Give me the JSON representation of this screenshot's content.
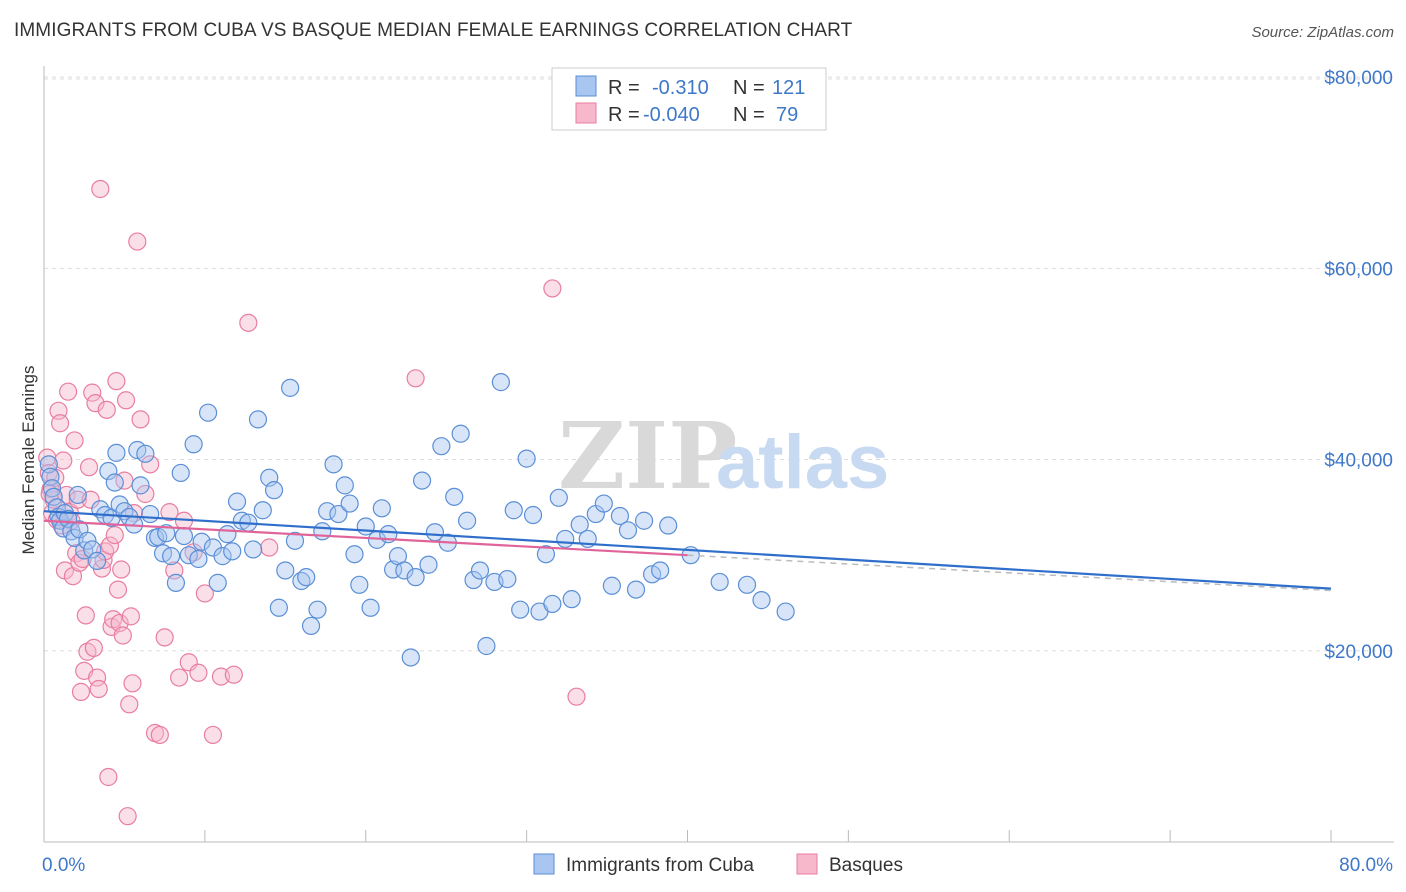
{
  "title": "IMMIGRANTS FROM CUBA VS BASQUE MEDIAN FEMALE EARNINGS CORRELATION CHART",
  "source": "Source: ZipAtlas.com",
  "watermark": {
    "zip": "ZIP",
    "atlas": "atlas"
  },
  "colors": {
    "cuba_fill": "#a8c6ef",
    "cuba_stroke": "#5b8fd6",
    "cuba_line": "#2f6fcb",
    "basque_fill": "#f7b8cb",
    "basque_stroke": "#e87ea1",
    "basque_line": "#e0649a",
    "axis_text": "#3f78c8",
    "grid": "#dddddd"
  },
  "legend": {
    "rows": [
      {
        "r_label": "R =",
        "r_value": "-0.310",
        "n_label": "N =",
        "n_value": "121"
      },
      {
        "r_label": "R =",
        "r_value": "-0.040",
        "n_label": "N =",
        "n_value": "79"
      }
    ]
  },
  "chart_data": {
    "type": "scatter",
    "title": "IMMIGRANTS FROM CUBA VS BASQUE MEDIAN FEMALE EARNINGS CORRELATION CHART",
    "xlabel": "",
    "ylabel": "Median Female Earnings",
    "xlim": [
      0,
      80
    ],
    "ylim": [
      0,
      82000
    ],
    "x_tick_labels": [
      "0.0%",
      "80.0%"
    ],
    "y_ticks": [
      20000,
      40000,
      60000,
      80000
    ],
    "y_tick_labels": [
      "$20,000",
      "$40,000",
      "$60,000",
      "$80,000"
    ],
    "grid": true,
    "series": [
      {
        "name": "Immigrants from Cuba",
        "r": -0.31,
        "n": 121,
        "trend": {
          "x": [
            0,
            80
          ],
          "y": [
            34600,
            26500
          ]
        },
        "trend_dashed": {
          "x": [
            80,
            80.3
          ],
          "y": [
            26500,
            26500
          ]
        },
        "points": [
          [
            0.3,
            39500
          ],
          [
            0.4,
            38200
          ],
          [
            0.5,
            37000
          ],
          [
            0.6,
            36100
          ],
          [
            0.8,
            35000
          ],
          [
            0.9,
            34000
          ],
          [
            1.0,
            33600
          ],
          [
            1.2,
            32800
          ],
          [
            1.3,
            34400
          ],
          [
            1.5,
            33800
          ],
          [
            1.7,
            32500
          ],
          [
            1.9,
            31800
          ],
          [
            2.2,
            32700
          ],
          [
            2.5,
            30500
          ],
          [
            2.7,
            31500
          ],
          [
            3.0,
            30600
          ],
          [
            3.3,
            29400
          ],
          [
            3.5,
            34800
          ],
          [
            3.8,
            34200
          ],
          [
            4.0,
            38800
          ],
          [
            4.2,
            33900
          ],
          [
            4.4,
            37600
          ],
          [
            4.5,
            40700
          ],
          [
            4.7,
            35300
          ],
          [
            5.0,
            34600
          ],
          [
            5.3,
            34000
          ],
          [
            5.6,
            33200
          ],
          [
            5.8,
            41000
          ],
          [
            6.0,
            37300
          ],
          [
            6.3,
            40600
          ],
          [
            6.6,
            34300
          ],
          [
            6.9,
            31800
          ],
          [
            7.1,
            31900
          ],
          [
            7.4,
            30200
          ],
          [
            7.6,
            32300
          ],
          [
            7.9,
            29900
          ],
          [
            8.2,
            27100
          ],
          [
            8.5,
            38600
          ],
          [
            8.7,
            32000
          ],
          [
            9.0,
            30000
          ],
          [
            9.3,
            41600
          ],
          [
            9.6,
            29600
          ],
          [
            9.8,
            31400
          ],
          [
            10.2,
            44900
          ],
          [
            10.5,
            30800
          ],
          [
            10.8,
            27100
          ],
          [
            11.1,
            29900
          ],
          [
            11.4,
            32200
          ],
          [
            11.7,
            30400
          ],
          [
            12.0,
            35600
          ],
          [
            12.3,
            33600
          ],
          [
            12.7,
            33400
          ],
          [
            13.0,
            30600
          ],
          [
            13.3,
            44200
          ],
          [
            13.6,
            34700
          ],
          [
            14.0,
            38100
          ],
          [
            14.3,
            36800
          ],
          [
            14.6,
            24500
          ],
          [
            15.0,
            28400
          ],
          [
            15.3,
            47500
          ],
          [
            15.6,
            31500
          ],
          [
            16.0,
            27300
          ],
          [
            16.3,
            27700
          ],
          [
            16.6,
            22600
          ],
          [
            17.0,
            24300
          ],
          [
            17.3,
            32500
          ],
          [
            17.6,
            34600
          ],
          [
            18.0,
            39500
          ],
          [
            18.3,
            34300
          ],
          [
            18.7,
            37300
          ],
          [
            19.0,
            35400
          ],
          [
            19.3,
            30100
          ],
          [
            19.6,
            26900
          ],
          [
            20.0,
            33000
          ],
          [
            20.3,
            24500
          ],
          [
            20.7,
            31600
          ],
          [
            21.0,
            34900
          ],
          [
            21.4,
            32200
          ],
          [
            21.7,
            28500
          ],
          [
            22.0,
            29900
          ],
          [
            22.4,
            28400
          ],
          [
            22.8,
            19300
          ],
          [
            23.1,
            27700
          ],
          [
            23.5,
            37800
          ],
          [
            23.9,
            29000
          ],
          [
            24.3,
            32400
          ],
          [
            24.7,
            41400
          ],
          [
            25.1,
            31300
          ],
          [
            25.5,
            36100
          ],
          [
            25.9,
            42700
          ],
          [
            26.3,
            33600
          ],
          [
            26.7,
            27400
          ],
          [
            27.1,
            28400
          ],
          [
            27.5,
            20500
          ],
          [
            28.0,
            27200
          ],
          [
            28.4,
            48100
          ],
          [
            28.8,
            27500
          ],
          [
            29.2,
            34700
          ],
          [
            29.6,
            24300
          ],
          [
            30.0,
            40100
          ],
          [
            30.4,
            34200
          ],
          [
            30.8,
            24100
          ],
          [
            31.2,
            30100
          ],
          [
            31.6,
            24900
          ],
          [
            32.0,
            36000
          ],
          [
            32.4,
            31700
          ],
          [
            32.8,
            25400
          ],
          [
            33.3,
            33200
          ],
          [
            33.8,
            31700
          ],
          [
            34.3,
            34300
          ],
          [
            34.8,
            35400
          ],
          [
            35.3,
            26800
          ],
          [
            35.8,
            34100
          ],
          [
            36.3,
            32600
          ],
          [
            36.8,
            26400
          ],
          [
            37.3,
            33600
          ],
          [
            37.8,
            28000
          ],
          [
            38.3,
            28400
          ],
          [
            38.8,
            33100
          ],
          [
            40.2,
            30000
          ],
          [
            42.0,
            27200
          ],
          [
            43.7,
            26900
          ],
          [
            44.6,
            25300
          ],
          [
            46.1,
            24100
          ],
          [
            2.1,
            36300
          ]
        ]
      },
      {
        "name": "Basques",
        "r": -0.04,
        "n": 79,
        "trend": {
          "x": [
            0,
            40
          ],
          "y": [
            33600,
            30000
          ]
        },
        "trend_dashed": {
          "x": [
            40,
            80
          ],
          "y": [
            30000,
            26300
          ]
        },
        "points": [
          [
            0.2,
            40200
          ],
          [
            0.3,
            38600
          ],
          [
            0.4,
            36900
          ],
          [
            0.5,
            34400
          ],
          [
            0.6,
            35800
          ],
          [
            0.7,
            38100
          ],
          [
            0.8,
            33700
          ],
          [
            0.9,
            45100
          ],
          [
            1.0,
            43800
          ],
          [
            1.1,
            33100
          ],
          [
            1.2,
            39900
          ],
          [
            1.3,
            28400
          ],
          [
            1.4,
            36300
          ],
          [
            1.5,
            47100
          ],
          [
            1.6,
            34500
          ],
          [
            1.7,
            33600
          ],
          [
            1.8,
            27800
          ],
          [
            1.9,
            42000
          ],
          [
            2.0,
            30200
          ],
          [
            2.1,
            35800
          ],
          [
            2.2,
            29200
          ],
          [
            2.3,
            15700
          ],
          [
            2.4,
            29600
          ],
          [
            2.5,
            17900
          ],
          [
            2.6,
            23700
          ],
          [
            2.7,
            19900
          ],
          [
            2.8,
            39200
          ],
          [
            2.9,
            35800
          ],
          [
            3.0,
            47000
          ],
          [
            3.1,
            20300
          ],
          [
            3.2,
            45900
          ],
          [
            3.3,
            17200
          ],
          [
            3.4,
            16000
          ],
          [
            3.5,
            68300
          ],
          [
            3.6,
            28600
          ],
          [
            3.7,
            29500
          ],
          [
            3.8,
            30400
          ],
          [
            3.9,
            45200
          ],
          [
            4.0,
            6800
          ],
          [
            4.1,
            31000
          ],
          [
            4.2,
            22500
          ],
          [
            4.3,
            23300
          ],
          [
            4.4,
            32100
          ],
          [
            4.5,
            48200
          ],
          [
            4.6,
            26400
          ],
          [
            4.7,
            22900
          ],
          [
            4.8,
            28500
          ],
          [
            4.9,
            21600
          ],
          [
            5.0,
            37800
          ],
          [
            5.1,
            46200
          ],
          [
            5.2,
            2700
          ],
          [
            5.3,
            14400
          ],
          [
            5.4,
            23600
          ],
          [
            5.5,
            16600
          ],
          [
            5.6,
            34400
          ],
          [
            5.8,
            62800
          ],
          [
            6.0,
            44200
          ],
          [
            6.3,
            36400
          ],
          [
            6.6,
            39500
          ],
          [
            6.9,
            11400
          ],
          [
            7.2,
            11200
          ],
          [
            7.5,
            21400
          ],
          [
            7.8,
            34500
          ],
          [
            8.1,
            28400
          ],
          [
            8.4,
            17200
          ],
          [
            8.7,
            33600
          ],
          [
            9.0,
            18800
          ],
          [
            9.3,
            30300
          ],
          [
            9.6,
            17700
          ],
          [
            10.0,
            26000
          ],
          [
            10.5,
            11200
          ],
          [
            11.0,
            17300
          ],
          [
            11.8,
            17500
          ],
          [
            12.7,
            54300
          ],
          [
            14.0,
            30800
          ],
          [
            23.1,
            48500
          ],
          [
            31.6,
            57900
          ],
          [
            33.1,
            15200
          ],
          [
            0.35,
            36400
          ]
        ]
      }
    ]
  },
  "bottom_legend": {
    "cuba": "Immigrants from Cuba",
    "basque": "Basques"
  }
}
